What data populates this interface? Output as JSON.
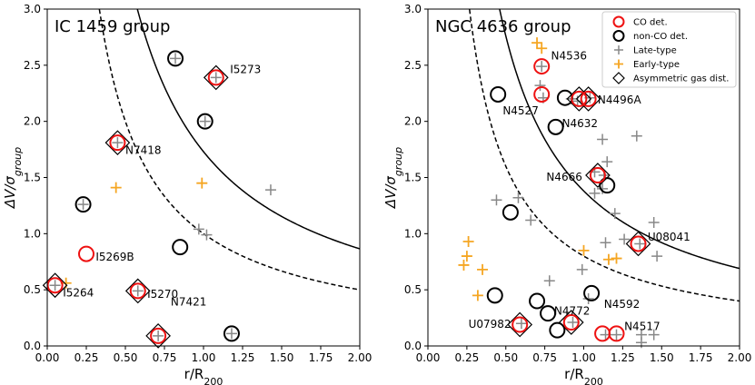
{
  "colors": {
    "co": "#ee1111",
    "nonco": "#000000",
    "late": "#888888",
    "early": "#f5a623",
    "curve": "#000000"
  },
  "legend": {
    "co": "CO det.",
    "nonco": "non-CO det.",
    "late": "Late-type",
    "early": "Early-type",
    "asym": "Asymmetric gas dist."
  },
  "chart_data": [
    {
      "type": "scatter",
      "id": "left",
      "title": "IC 1459 group",
      "xlabel": "r/R",
      "xlabel_sub": "200",
      "ylabel": "ΔV/σ",
      "ylabel_sub": "group",
      "xlim": [
        0,
        2.0
      ],
      "ylim": [
        0,
        3.0
      ],
      "xticks": [
        "0.00",
        "0.25",
        "0.50",
        "0.75",
        "1.00",
        "1.25",
        "1.50",
        "1.75",
        "2.00"
      ],
      "yticks": [
        "0.0",
        "0.5",
        "1.0",
        "1.5",
        "2.0",
        "2.5",
        "3.0"
      ],
      "show_legend": false,
      "curves": [
        {
          "name": "solid",
          "k": 1.73,
          "dash": false
        },
        {
          "name": "dashed",
          "k": 1.0,
          "dash": true
        }
      ],
      "late": [
        [
          0.23,
          1.26
        ],
        [
          0.82,
          2.56
        ],
        [
          1.01,
          2.0
        ],
        [
          0.97,
          1.04
        ],
        [
          1.02,
          0.99
        ],
        [
          1.43,
          1.39
        ],
        [
          0.05,
          0.54
        ],
        [
          0.58,
          0.49
        ],
        [
          0.71,
          0.09
        ],
        [
          1.18,
          0.11
        ],
        [
          0.45,
          1.81
        ],
        [
          1.08,
          2.39
        ]
      ],
      "early": [
        [
          0.12,
          0.56
        ],
        [
          0.44,
          1.41
        ],
        [
          0.99,
          1.45
        ]
      ],
      "co": [
        [
          0.45,
          1.81
        ],
        [
          1.08,
          2.39
        ],
        [
          0.25,
          0.82
        ],
        [
          0.05,
          0.54
        ],
        [
          0.58,
          0.49
        ],
        [
          0.71,
          0.09
        ]
      ],
      "nonco": [
        [
          0.23,
          1.26
        ],
        [
          0.82,
          2.56
        ],
        [
          1.01,
          2.0
        ],
        [
          0.85,
          0.88
        ],
        [
          1.18,
          0.11
        ]
      ],
      "asym": [
        [
          0.45,
          1.81
        ],
        [
          1.08,
          2.39
        ],
        [
          0.05,
          0.54
        ],
        [
          0.58,
          0.49
        ],
        [
          0.71,
          0.09
        ]
      ],
      "labels": [
        {
          "text": "I5273",
          "x": 1.17,
          "y": 2.43
        },
        {
          "text": "N7418",
          "x": 0.5,
          "y": 1.71
        },
        {
          "text": "I5269B",
          "x": 0.31,
          "y": 0.76
        },
        {
          "text": "I5264",
          "x": 0.1,
          "y": 0.44
        },
        {
          "text": "I5270",
          "x": 0.64,
          "y": 0.43
        },
        {
          "text": "N7421",
          "x": 0.79,
          "y": 0.36
        }
      ]
    },
    {
      "type": "scatter",
      "id": "right",
      "title": "NGC 4636 group",
      "xlabel": "r/R",
      "xlabel_sub": "200",
      "ylabel": "ΔV/σ",
      "ylabel_sub": "group",
      "xlim": [
        0,
        2.0
      ],
      "ylim": [
        0,
        3.0
      ],
      "xticks": [
        "0.00",
        "0.25",
        "0.50",
        "0.75",
        "1.00",
        "1.25",
        "1.50",
        "1.75",
        "2.00"
      ],
      "yticks": [
        "0.0",
        "0.5",
        "1.0",
        "1.5",
        "2.0",
        "2.5",
        "3.0"
      ],
      "show_legend": true,
      "curves": [
        {
          "name": "solid",
          "k": 1.38,
          "dash": false
        },
        {
          "name": "dashed",
          "k": 0.8,
          "dash": true
        }
      ],
      "late": [
        [
          0.72,
          2.32
        ],
        [
          0.74,
          2.21
        ],
        [
          0.92,
          2.2
        ],
        [
          0.96,
          2.18
        ],
        [
          1.04,
          2.21
        ],
        [
          1.12,
          1.84
        ],
        [
          1.34,
          1.87
        ],
        [
          1.15,
          1.64
        ],
        [
          1.07,
          1.55
        ],
        [
          1.13,
          1.52
        ],
        [
          1.07,
          1.36
        ],
        [
          1.12,
          1.4
        ],
        [
          1.2,
          1.18
        ],
        [
          0.44,
          1.3
        ],
        [
          0.58,
          1.32
        ],
        [
          0.66,
          1.12
        ],
        [
          1.14,
          0.92
        ],
        [
          1.26,
          0.95
        ],
        [
          1.45,
          1.1
        ],
        [
          1.47,
          0.8
        ],
        [
          0.99,
          0.68
        ],
        [
          0.78,
          0.58
        ],
        [
          1.03,
          0.42
        ],
        [
          1.37,
          0.1
        ],
        [
          1.45,
          0.1
        ],
        [
          1.37,
          0.03
        ],
        [
          1.14,
          0.1
        ],
        [
          1.21,
          0.1
        ],
        [
          0.73,
          2.49
        ],
        [
          0.6,
          0.2
        ],
        [
          0.93,
          0.21
        ],
        [
          1.36,
          0.91
        ]
      ],
      "early": [
        [
          0.7,
          2.7
        ],
        [
          0.73,
          2.65
        ],
        [
          0.26,
          0.93
        ],
        [
          0.25,
          0.8
        ],
        [
          0.23,
          0.72
        ],
        [
          0.35,
          0.68
        ],
        [
          0.32,
          0.45
        ],
        [
          1.0,
          0.85
        ],
        [
          1.21,
          0.78
        ],
        [
          1.16,
          0.77
        ]
      ],
      "co": [
        [
          0.73,
          2.49
        ],
        [
          0.73,
          2.24
        ],
        [
          0.97,
          2.2
        ],
        [
          1.03,
          2.2
        ],
        [
          1.09,
          1.52
        ],
        [
          1.35,
          0.91
        ],
        [
          0.59,
          0.19
        ],
        [
          0.92,
          0.21
        ],
        [
          1.12,
          0.11
        ],
        [
          1.21,
          0.11
        ]
      ],
      "nonco": [
        [
          0.45,
          2.24
        ],
        [
          0.88,
          2.21
        ],
        [
          0.82,
          1.95
        ],
        [
          1.15,
          1.43
        ],
        [
          0.53,
          1.19
        ],
        [
          0.43,
          0.45
        ],
        [
          0.7,
          0.4
        ],
        [
          0.77,
          0.29
        ],
        [
          1.05,
          0.47
        ],
        [
          0.83,
          0.14
        ]
      ],
      "asym": [
        [
          0.97,
          2.2
        ],
        [
          1.03,
          2.2
        ],
        [
          1.09,
          1.52
        ],
        [
          1.35,
          0.91
        ],
        [
          0.59,
          0.19
        ],
        [
          0.92,
          0.21
        ]
      ],
      "labels": [
        {
          "text": "N4536",
          "x": 0.79,
          "y": 2.55
        },
        {
          "text": "N4496A",
          "x": 1.09,
          "y": 2.16
        },
        {
          "text": "N4527",
          "x": 0.48,
          "y": 2.06
        },
        {
          "text": "N4632",
          "x": 0.86,
          "y": 1.95
        },
        {
          "text": "N4666",
          "x": 0.76,
          "y": 1.47
        },
        {
          "text": "U08041",
          "x": 1.41,
          "y": 0.94
        },
        {
          "text": "N4772",
          "x": 0.81,
          "y": 0.28
        },
        {
          "text": "U07982",
          "x": 0.26,
          "y": 0.16
        },
        {
          "text": "N4592",
          "x": 1.13,
          "y": 0.34
        },
        {
          "text": "N4517",
          "x": 1.26,
          "y": 0.14
        }
      ]
    }
  ]
}
